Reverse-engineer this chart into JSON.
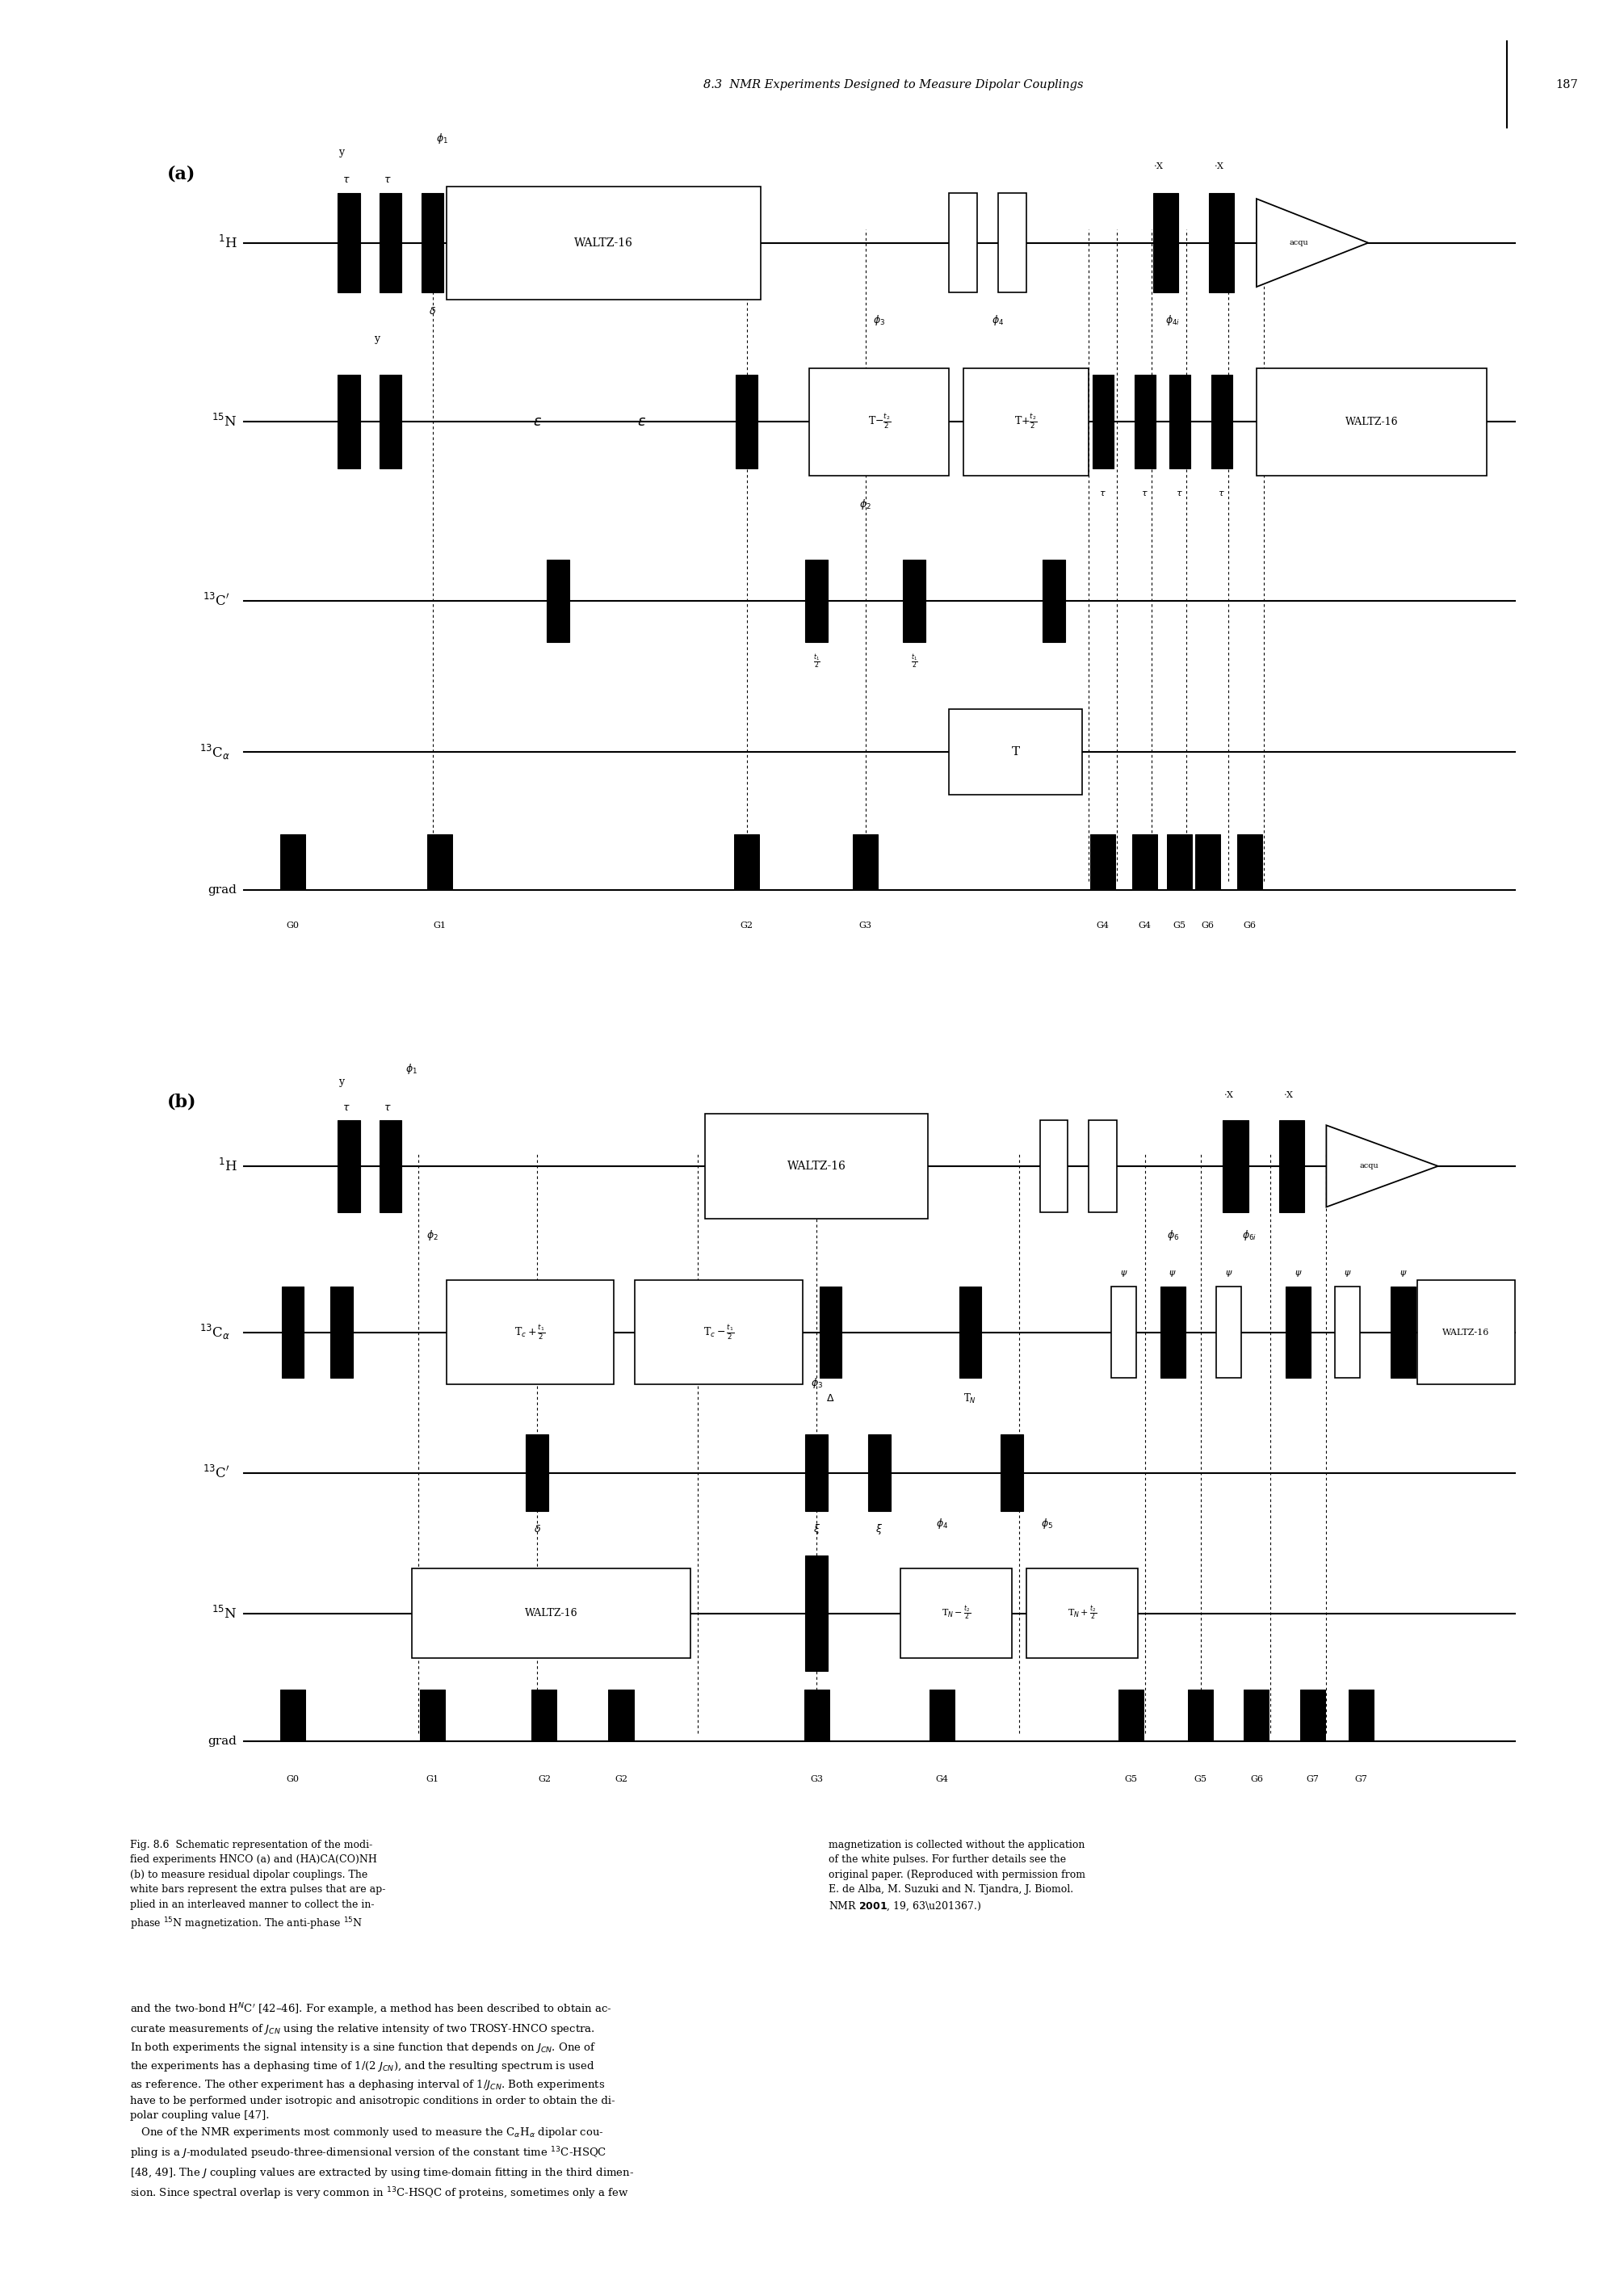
{
  "header": "8.3  NMR Experiments Designed to Measure Dipolar Couplings",
  "page_num": "187",
  "body_text": [
    "and the two-bond HᴼC′ [42–46]. For example, a method has been described to obtain accurate measurements of J₂ₙ using the relative intensity of two TROSY-HNCO spectra.",
    "In both experiments the signal intensity is a sine function that depends on J₂ₙ. One of the experiments has a dephasing time of 1/(2 J₂ₙ), and the resulting spectrum is used as reference. The other experiment has a dephasing interval of 1/J₂ₙ. Both experiments have to be performed under isotropic and anisotropic conditions in order to obtain the dipolar coupling value [47].",
    "One of the NMR experiments most commonly used to measure the CαHα dipolar coupling is a J-modulated pseudo-three-dimensional version of the constant time ¹³C-HSQC [48, 49]. The J coupling values are extracted by using time-domain fitting in the third dimension. Since spectral overlap is very common in ¹³C-HSQC of proteins, sometimes only a few"
  ],
  "caption_left": "Fig. 8.6  Schematic representation of the modi-\nfied experiments HNCO (a) and (HA)CA(CO)NH\n(b) to measure residual dipolar couplings. The\nwhite bars represent the extra pulses that are ap-\nplied in an interleaved manner to collect the in-\nphase ¹⁵N magnetization. The anti-phase ¹⁵N",
  "caption_right": "magnetization is collected without the application\nof the white pulses. For further details see the\noriginal paper. (Reproduced with permission from\nE. de Alba, M. Suzuki and N. Tjandra, J. Biomol.\nNMR 2001, 19, 63–67.)",
  "bg_color": "#ffffff"
}
